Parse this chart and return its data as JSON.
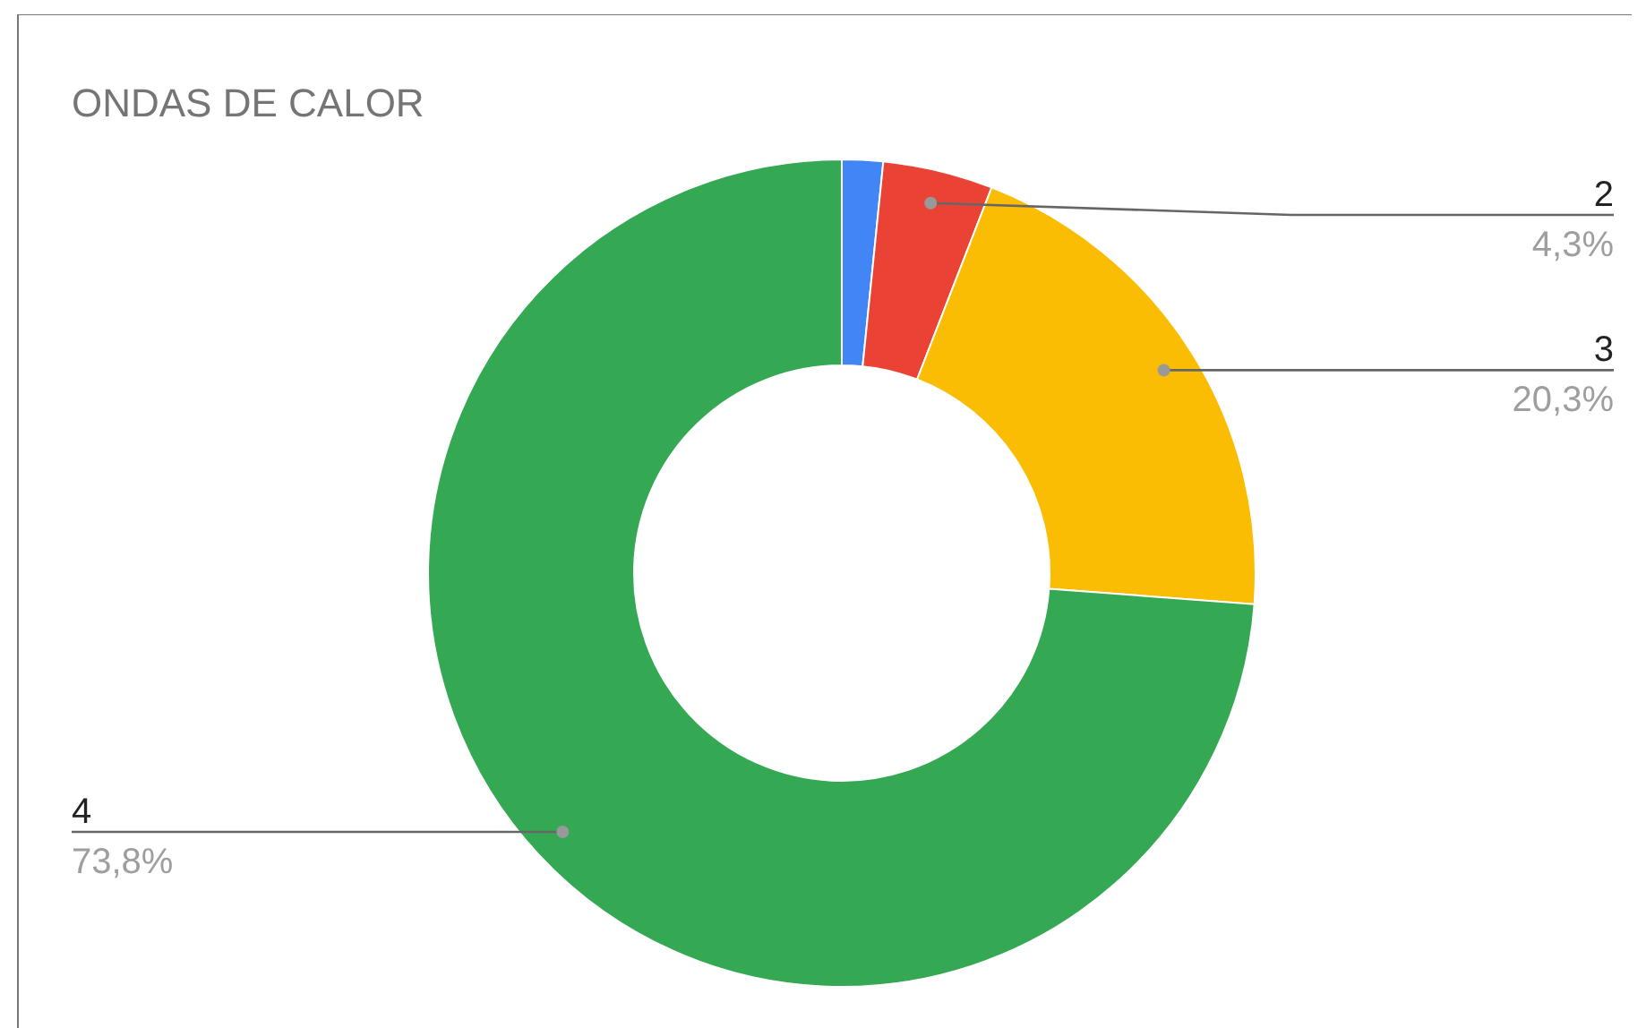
{
  "chart_data": {
    "type": "donut",
    "title": "ONDAS DE CALOR",
    "categories": [
      null,
      "2",
      "3",
      "4"
    ],
    "values": [
      1.6,
      4.3,
      20.3,
      73.8
    ],
    "colors": [
      "#4285f4",
      "#ea4335",
      "#fbbc04",
      "#34a853"
    ],
    "value_labels": [
      null,
      "4,3%",
      "20,3%",
      "73,8%"
    ],
    "legend": false
  }
}
